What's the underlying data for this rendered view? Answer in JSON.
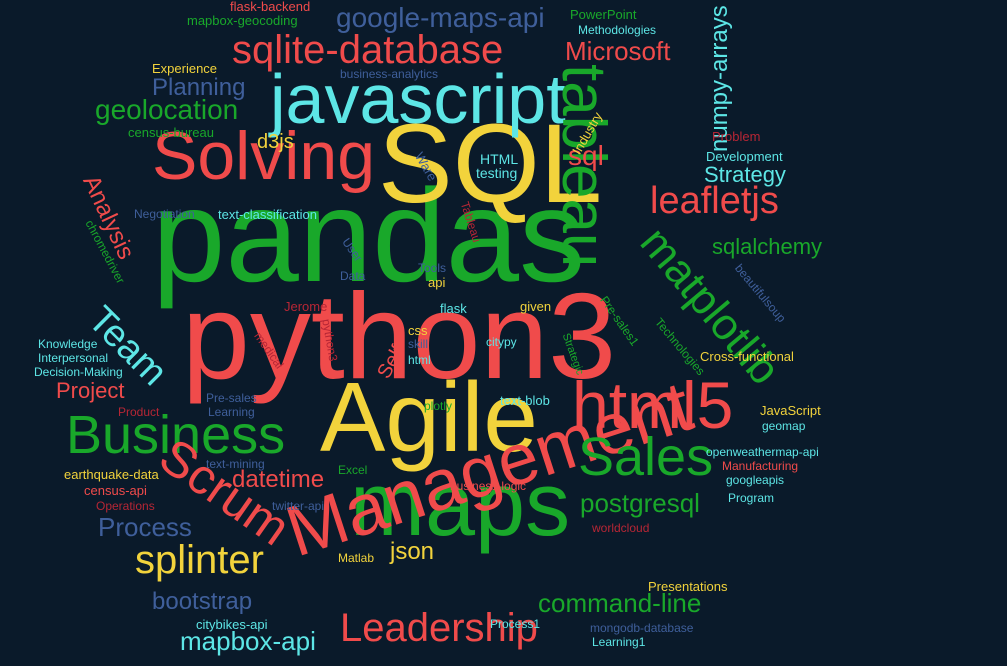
{
  "palette": {
    "background": "#0a1a2a",
    "red": "#f04b4b",
    "green": "#19a82a",
    "yellow": "#f2d33c",
    "cyan": "#5de6e6",
    "blue": "#3f5f9b",
    "darkred": "#b72635"
  },
  "words": [
    {
      "text": "pandas",
      "color": "green"
    },
    {
      "text": "python3",
      "color": "red"
    },
    {
      "text": "SQL",
      "color": "yellow"
    },
    {
      "text": "javascript",
      "color": "cyan"
    },
    {
      "text": "Agile",
      "color": "yellow"
    },
    {
      "text": "maps",
      "color": "green"
    },
    {
      "text": "Management",
      "color": "red"
    },
    {
      "text": "Solving",
      "color": "red"
    },
    {
      "text": "tableau",
      "color": "green"
    },
    {
      "text": "html5",
      "color": "red"
    },
    {
      "text": "Business",
      "color": "green"
    },
    {
      "text": "Sales",
      "color": "green"
    },
    {
      "text": "Scrum",
      "color": "red"
    },
    {
      "text": "matplotlib",
      "color": "green"
    },
    {
      "text": "sqlite-database",
      "color": "red"
    },
    {
      "text": "Leadership",
      "color": "red"
    },
    {
      "text": "leafletjs",
      "color": "red"
    },
    {
      "text": "splinter",
      "color": "yellow"
    },
    {
      "text": "Team",
      "color": "cyan"
    },
    {
      "text": "google-maps-api",
      "color": "blue"
    },
    {
      "text": "Microsoft",
      "color": "red"
    },
    {
      "text": "command-line",
      "color": "green"
    },
    {
      "text": "mapbox-api",
      "color": "cyan"
    },
    {
      "text": "geolocation",
      "color": "green"
    },
    {
      "text": "postgresql",
      "color": "green"
    },
    {
      "text": "numpy-arrays",
      "color": "cyan"
    },
    {
      "text": "bootstrap",
      "color": "blue"
    },
    {
      "text": "Process",
      "color": "blue"
    },
    {
      "text": "datetime",
      "color": "red"
    },
    {
      "text": "sqlalchemy",
      "color": "green"
    },
    {
      "text": "Planning",
      "color": "blue"
    },
    {
      "text": "Strategy",
      "color": "cyan"
    },
    {
      "text": "Project",
      "color": "red"
    },
    {
      "text": "Analysis",
      "color": "red"
    },
    {
      "text": "json",
      "color": "yellow"
    },
    {
      "text": "d3js",
      "color": "yellow"
    },
    {
      "text": "sql",
      "color": "red"
    },
    {
      "text": "Self",
      "color": "red"
    },
    {
      "text": "HTML",
      "color": "cyan"
    },
    {
      "text": "testing",
      "color": "cyan"
    },
    {
      "text": "flask-backend",
      "color": "red"
    },
    {
      "text": "mapbox-geocoding",
      "color": "green"
    },
    {
      "text": "PowerPoint",
      "color": "green"
    },
    {
      "text": "Methodologies",
      "color": "cyan"
    },
    {
      "text": "Experience",
      "color": "yellow"
    },
    {
      "text": "business-analytics",
      "color": "blue"
    },
    {
      "text": "census-bureau",
      "color": "green"
    },
    {
      "text": "Ware",
      "color": "blue"
    },
    {
      "text": "Industry",
      "color": "yellow"
    },
    {
      "text": "Problem",
      "color": "darkred"
    },
    {
      "text": "Development",
      "color": "cyan"
    },
    {
      "text": "Negotiation",
      "color": "blue"
    },
    {
      "text": "text-classification",
      "color": "cyan"
    },
    {
      "text": "Tableau",
      "color": "darkred"
    },
    {
      "text": "chromedriver",
      "color": "green"
    },
    {
      "text": "User",
      "color": "blue"
    },
    {
      "text": "Data",
      "color": "blue"
    },
    {
      "text": "Tools",
      "color": "blue"
    },
    {
      "text": "api",
      "color": "yellow"
    },
    {
      "text": "beautifulsoup",
      "color": "blue"
    },
    {
      "text": "Jerome",
      "color": "darkred"
    },
    {
      "text": "flask",
      "color": "cyan"
    },
    {
      "text": "given",
      "color": "yellow"
    },
    {
      "text": "Pre-sales1",
      "color": "green"
    },
    {
      "text": "Technologies",
      "color": "green"
    },
    {
      "text": "Knowledge",
      "color": "cyan"
    },
    {
      "text": "Interpersonal",
      "color": "cyan"
    },
    {
      "text": "medical",
      "color": "darkred"
    },
    {
      "text": "python3",
      "color": "darkred"
    },
    {
      "text": "css",
      "color": "yellow"
    },
    {
      "text": "skill",
      "color": "blue"
    },
    {
      "text": "citypy",
      "color": "cyan"
    },
    {
      "text": "Decision-Making",
      "color": "cyan"
    },
    {
      "text": "html",
      "color": "cyan"
    },
    {
      "text": "Strategic",
      "color": "green"
    },
    {
      "text": "Cross-functional",
      "color": "yellow"
    },
    {
      "text": "Pre-sales",
      "color": "blue"
    },
    {
      "text": "Learning",
      "color": "blue"
    },
    {
      "text": "plotly",
      "color": "green"
    },
    {
      "text": "text-blob",
      "color": "cyan"
    },
    {
      "text": "Product",
      "color": "darkred"
    },
    {
      "text": "JavaScript",
      "color": "yellow"
    },
    {
      "text": "geomap",
      "color": "cyan"
    },
    {
      "text": "openweathermap-api",
      "color": "cyan"
    },
    {
      "text": "text-mining",
      "color": "blue"
    },
    {
      "text": "Manufacturing",
      "color": "red"
    },
    {
      "text": "earthquake-data",
      "color": "yellow"
    },
    {
      "text": "Excel",
      "color": "green"
    },
    {
      "text": "googleapis",
      "color": "cyan"
    },
    {
      "text": "census-api",
      "color": "red"
    },
    {
      "text": "business-logic",
      "color": "red"
    },
    {
      "text": "Program",
      "color": "cyan"
    },
    {
      "text": "Operations",
      "color": "darkred"
    },
    {
      "text": "twitter-api",
      "color": "blue"
    },
    {
      "text": "worldcloud",
      "color": "darkred"
    },
    {
      "text": "Matlab",
      "color": "yellow"
    },
    {
      "text": "Presentations",
      "color": "yellow"
    },
    {
      "text": "citybikes-api",
      "color": "cyan"
    },
    {
      "text": "Process1",
      "color": "cyan"
    },
    {
      "text": "mongodb-database",
      "color": "blue"
    },
    {
      "text": "Learning1",
      "color": "cyan"
    }
  ]
}
